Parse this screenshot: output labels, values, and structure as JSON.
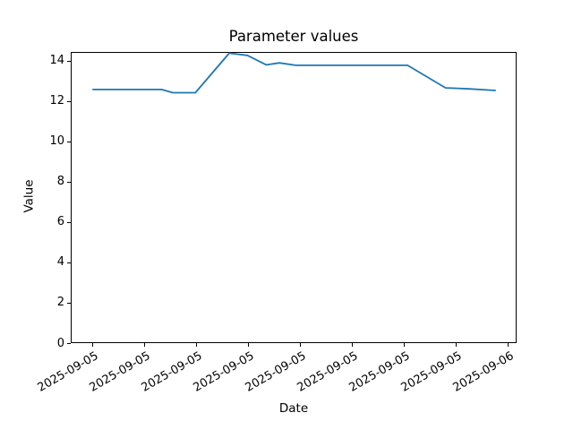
{
  "figure": {
    "background": "#ffffff"
  },
  "chart_data": {
    "type": "line",
    "title": "Parameter values",
    "xlabel": "Date",
    "ylabel": "Value",
    "line_color": "#1f77b4",
    "axis_color": "#000000",
    "grid": false,
    "legend": null,
    "x_unit": "hours since 2025-09-05 00:00 (estimated from tick spacing)",
    "xlim": [
      -1.25,
      24.5
    ],
    "ylim": [
      0,
      14.44
    ],
    "yticks": [
      0,
      2,
      4,
      6,
      8,
      10,
      12,
      14
    ],
    "xticks": [
      {
        "hour": 0,
        "label": "2025-09-05"
      },
      {
        "hour": 3,
        "label": "2025-09-05"
      },
      {
        "hour": 6,
        "label": "2025-09-05"
      },
      {
        "hour": 9,
        "label": "2025-09-05"
      },
      {
        "hour": 12,
        "label": "2025-09-05"
      },
      {
        "hour": 15,
        "label": "2025-09-05"
      },
      {
        "hour": 18,
        "label": "2025-09-05"
      },
      {
        "hour": 21,
        "label": "2025-09-05"
      },
      {
        "hour": 24,
        "label": "2025-09-06"
      }
    ],
    "series": [
      {
        "name": "Parameter",
        "points": [
          [
            0.0,
            12.58
          ],
          [
            4.0,
            12.58
          ],
          [
            4.65,
            12.42
          ],
          [
            5.95,
            12.42
          ],
          [
            7.9,
            14.38
          ],
          [
            8.95,
            14.27
          ],
          [
            10.05,
            13.8
          ],
          [
            10.8,
            13.9
          ],
          [
            11.75,
            13.78
          ],
          [
            18.2,
            13.78
          ],
          [
            20.4,
            12.66
          ],
          [
            21.75,
            12.61
          ],
          [
            23.3,
            12.53
          ]
        ]
      }
    ]
  }
}
